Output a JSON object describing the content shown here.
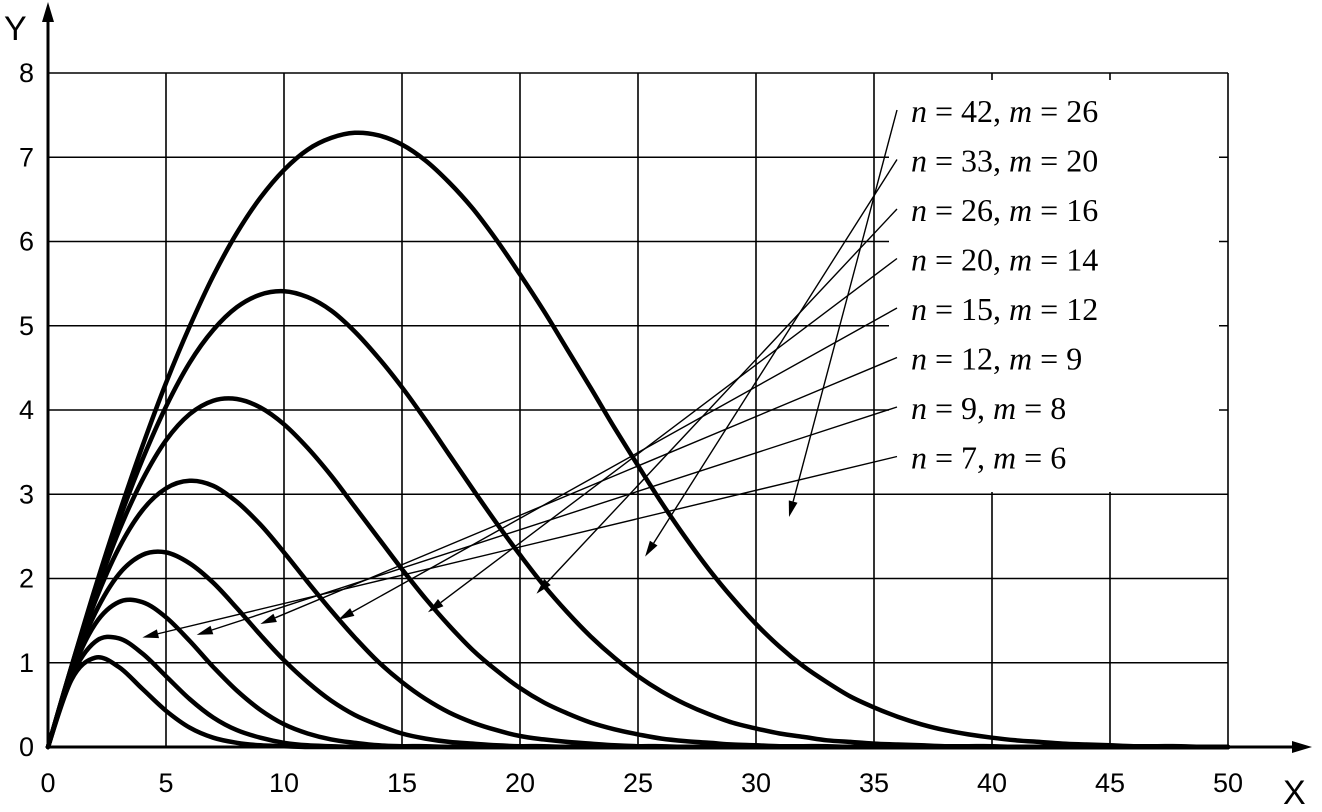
{
  "chart_data": {
    "type": "line",
    "title": "",
    "xlabel": "X",
    "ylabel": "Y",
    "xlim": [
      0,
      50
    ],
    "ylim": [
      0,
      8
    ],
    "xticks": [
      0,
      5,
      10,
      15,
      20,
      25,
      30,
      35,
      40,
      45,
      50
    ],
    "yticks": [
      0,
      1,
      2,
      3,
      4,
      5,
      6,
      7,
      8
    ],
    "grid": true,
    "x": [
      0,
      1,
      2,
      3,
      4,
      5,
      6,
      7,
      8,
      9,
      10,
      11,
      12,
      13,
      14,
      15,
      16,
      17,
      18,
      19,
      20,
      21,
      22,
      23,
      24,
      25,
      26,
      27,
      28,
      29,
      30,
      31,
      32,
      33,
      34,
      35,
      36,
      37,
      38,
      39,
      40,
      41,
      42,
      43,
      44,
      45,
      46,
      47,
      48,
      49,
      50
    ],
    "series": [
      {
        "name": "n = 42, m = 26",
        "n": 42,
        "m": 26,
        "label_parts": [
          "n",
          " = 42, ",
          "m",
          " = 26"
        ],
        "values": [
          0,
          0.96,
          1.89,
          2.76,
          3.57,
          4.32,
          4.99,
          5.59,
          6.1,
          6.52,
          6.85,
          7.09,
          7.23,
          7.29,
          7.26,
          7.15,
          6.96,
          6.7,
          6.39,
          6.02,
          5.61,
          5.18,
          4.72,
          4.26,
          3.79,
          3.34,
          2.9,
          2.49,
          2.11,
          1.77,
          1.46,
          1.19,
          0.96,
          0.77,
          0.6,
          0.47,
          0.36,
          0.27,
          0.2,
          0.15,
          0.11,
          0.08,
          0.06,
          0.04,
          0.03,
          0.02,
          0.01,
          0.01,
          0.01,
          0.0,
          0.0
        ]
      },
      {
        "name": "n = 33, m = 20",
        "n": 33,
        "m": 20,
        "label_parts": [
          "n",
          " = 33, ",
          "m",
          " = 20"
        ],
        "values": [
          0,
          0.96,
          1.85,
          2.68,
          3.41,
          4.04,
          4.56,
          4.95,
          5.22,
          5.37,
          5.41,
          5.34,
          5.18,
          4.93,
          4.62,
          4.27,
          3.88,
          3.47,
          3.06,
          2.66,
          2.28,
          1.92,
          1.6,
          1.31,
          1.06,
          0.84,
          0.66,
          0.51,
          0.39,
          0.29,
          0.22,
          0.16,
          0.12,
          0.08,
          0.06,
          0.04,
          0.03,
          0.02,
          0.01,
          0.01,
          0.01,
          0.0,
          0.0,
          0.0,
          0.0,
          0.0,
          0.0,
          0.0,
          0.0,
          0.0,
          0.0
        ]
      },
      {
        "name": "n = 26, m = 16",
        "n": 26,
        "m": 16,
        "label_parts": [
          "n",
          " = 26, ",
          "m",
          " = 16"
        ],
        "values": [
          0,
          0.95,
          1.81,
          2.56,
          3.17,
          3.64,
          3.95,
          4.11,
          4.13,
          4.03,
          3.83,
          3.55,
          3.22,
          2.85,
          2.48,
          2.11,
          1.76,
          1.44,
          1.15,
          0.91,
          0.7,
          0.53,
          0.4,
          0.29,
          0.21,
          0.15,
          0.1,
          0.07,
          0.05,
          0.03,
          0.02,
          0.01,
          0.01,
          0.01,
          0.0,
          0.0,
          0.0,
          0.0,
          0.0,
          0.0,
          0.0,
          0.0,
          0.0,
          0.0,
          0.0,
          0.0,
          0.0,
          0.0,
          0.0,
          0.0,
          0.0
        ]
      },
      {
        "name": "n = 20, m = 14",
        "n": 20,
        "m": 14,
        "label_parts": [
          "n",
          " = 20, ",
          "m",
          " = 14"
        ],
        "values": [
          0,
          0.93,
          1.73,
          2.36,
          2.81,
          3.07,
          3.16,
          3.1,
          2.91,
          2.64,
          2.31,
          1.96,
          1.62,
          1.3,
          1.01,
          0.77,
          0.57,
          0.41,
          0.29,
          0.2,
          0.13,
          0.09,
          0.06,
          0.04,
          0.02,
          0.01,
          0.01,
          0.0,
          0.0,
          0.0,
          0.0,
          0.0,
          0.0,
          0.0,
          0.0,
          0.0,
          0.0,
          0.0,
          0.0,
          0.0,
          0.0,
          0.0,
          0.0,
          0.0,
          0.0,
          0.0,
          0.0,
          0.0,
          0.0,
          0.0,
          0.0
        ]
      },
      {
        "name": "n = 15, m = 12",
        "n": 15,
        "m": 12,
        "label_parts": [
          "n",
          " = 15, ",
          "m",
          " = 12"
        ],
        "values": [
          0,
          0.91,
          1.59,
          2.05,
          2.28,
          2.31,
          2.18,
          1.95,
          1.65,
          1.33,
          1.03,
          0.77,
          0.55,
          0.38,
          0.26,
          0.16,
          0.1,
          0.06,
          0.04,
          0.02,
          0.01,
          0.01,
          0.0,
          0.0,
          0.0,
          0.0,
          0.0,
          0.0,
          0.0,
          0.0,
          0.0,
          0.0,
          0.0,
          0.0,
          0.0,
          0.0,
          0.0,
          0.0,
          0.0,
          0.0,
          0.0,
          0.0,
          0.0,
          0.0,
          0.0,
          0.0,
          0.0,
          0.0,
          0.0,
          0.0,
          0.0
        ]
      },
      {
        "name": "n = 12, m = 9",
        "n": 12,
        "m": 9,
        "label_parts": [
          "n",
          " = 12, ",
          "m",
          " = 9"
        ],
        "values": [
          0,
          0.88,
          1.46,
          1.72,
          1.72,
          1.54,
          1.26,
          0.95,
          0.67,
          0.44,
          0.27,
          0.16,
          0.09,
          0.05,
          0.02,
          0.01,
          0.01,
          0.0,
          0.0,
          0.0,
          0.0,
          0.0,
          0.0,
          0.0,
          0.0,
          0.0,
          0.0,
          0.0,
          0.0,
          0.0,
          0.0,
          0.0,
          0.0,
          0.0,
          0.0,
          0.0,
          0.0,
          0.0,
          0.0,
          0.0,
          0.0,
          0.0,
          0.0,
          0.0,
          0.0,
          0.0,
          0.0,
          0.0,
          0.0,
          0.0,
          0.0
        ]
      },
      {
        "name": "n = 9, m = 8",
        "n": 9,
        "m": 8,
        "label_parts": [
          "n",
          " = 9, ",
          "m",
          " = 8"
        ],
        "values": [
          0,
          0.84,
          1.25,
          1.29,
          1.11,
          0.84,
          0.57,
          0.35,
          0.2,
          0.11,
          0.05,
          0.02,
          0.01,
          0.0,
          0.0,
          0.0,
          0.0,
          0.0,
          0.0,
          0.0,
          0.0,
          0.0,
          0.0,
          0.0,
          0.0,
          0.0,
          0.0,
          0.0,
          0.0,
          0.0,
          0.0,
          0.0,
          0.0,
          0.0,
          0.0,
          0.0,
          0.0,
          0.0,
          0.0,
          0.0,
          0.0,
          0.0,
          0.0,
          0.0,
          0.0,
          0.0,
          0.0,
          0.0,
          0.0,
          0.0,
          0.0
        ]
      },
      {
        "name": "n = 7, m = 6",
        "n": 7,
        "m": 6,
        "label_parts": [
          "n",
          " = 7, ",
          "m",
          " = 6"
        ],
        "values": [
          0,
          0.8,
          1.06,
          0.95,
          0.69,
          0.43,
          0.23,
          0.11,
          0.05,
          0.02,
          0.01,
          0.0,
          0.0,
          0.0,
          0.0,
          0.0,
          0.0,
          0.0,
          0.0,
          0.0,
          0.0,
          0.0,
          0.0,
          0.0,
          0.0,
          0.0,
          0.0,
          0.0,
          0.0,
          0.0,
          0.0,
          0.0,
          0.0,
          0.0,
          0.0,
          0.0,
          0.0,
          0.0,
          0.0,
          0.0,
          0.0,
          0.0,
          0.0,
          0.0,
          0.0,
          0.0,
          0.0,
          0.0,
          0.0,
          0.0,
          0.0
        ]
      }
    ],
    "arrow_targets": [
      [
        31.4,
        2.73
      ],
      [
        25.3,
        2.26
      ],
      [
        20.7,
        1.82
      ],
      [
        16.1,
        1.6
      ],
      [
        12.3,
        1.51
      ],
      [
        9.0,
        1.46
      ],
      [
        6.3,
        1.33
      ],
      [
        4.0,
        1.3
      ]
    ]
  }
}
